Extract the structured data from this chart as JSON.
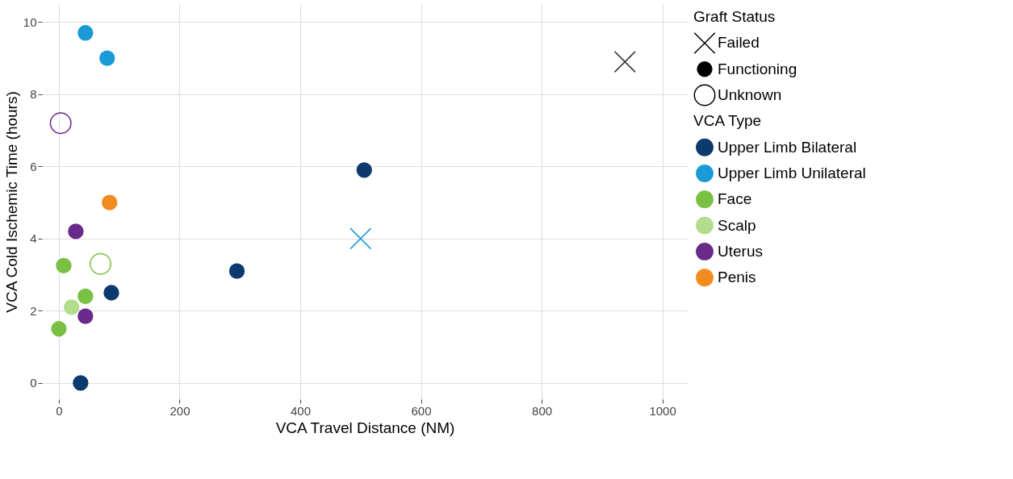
{
  "chart_data": {
    "type": "scatter",
    "xlabel": "VCA Travel Distance (NM)",
    "ylabel": "VCA Cold Ischemic Time (hours)",
    "xlim": [
      -28,
      1042
    ],
    "ylim": [
      -0.45,
      10.5
    ],
    "xticks": [
      0,
      200,
      400,
      600,
      800,
      1000
    ],
    "yticks": [
      0,
      2,
      4,
      6,
      8,
      10
    ],
    "grid": true,
    "legend": "right",
    "legend_title": [
      "Graft Status",
      "VCA Type"
    ],
    "series": [
      {
        "name": "Failed",
        "color": "#000000",
        "marker": "cross"
      },
      {
        "name": "Functioning",
        "color": "#000000",
        "marker": "circle"
      },
      {
        "name": "Unknown",
        "color": "#000000",
        "marker": "circle_open"
      },
      {
        "name": "Upper Limb Bilateral",
        "color": "#0d3a6e",
        "marker": "circle",
        "x": [
          36,
          87,
          295,
          506
        ],
        "values": [
          0,
          2.5,
          3.1,
          5.9
        ]
      },
      {
        "name": "Upper Limb Unilateral",
        "color": "#1a9ad6",
        "marker": "circle",
        "x": [
          44,
          80
        ],
        "values": [
          9.7,
          9.0
        ]
      },
      {
        "name": "Face",
        "color": "#7ac143",
        "marker": "circle",
        "x": [
          8,
          44,
          0
        ],
        "values": [
          3.25,
          2.4,
          1.5
        ]
      },
      {
        "name": "Scalp",
        "color": "#b2dd8e",
        "marker": "circle",
        "x": [
          21
        ],
        "values": [
          2.1
        ]
      },
      {
        "name": "Uterus",
        "color": "#6a2a8a",
        "marker": "circle",
        "x": [
          28,
          44
        ],
        "values": [
          4.2,
          1.85
        ]
      },
      {
        "name": "Penis",
        "color": "#f28c1e",
        "marker": "circle",
        "x": [
          84
        ],
        "values": [
          5.0
        ]
      },
      {
        "color": "#1a9ad6",
        "marker": "cross",
        "x": [
          500
        ],
        "values": [
          4.0
        ]
      },
      {
        "color": "#7ac143",
        "marker": "circle_open",
        "x": [
          69
        ],
        "values": [
          3.3
        ]
      },
      {
        "color": "#6a2a8a",
        "marker": "circle_open",
        "x": [
          3
        ],
        "values": [
          7.2
        ]
      },
      {
        "color": "#333333",
        "marker": "cross",
        "x": [
          938
        ],
        "values": [
          8.9
        ]
      }
    ]
  }
}
